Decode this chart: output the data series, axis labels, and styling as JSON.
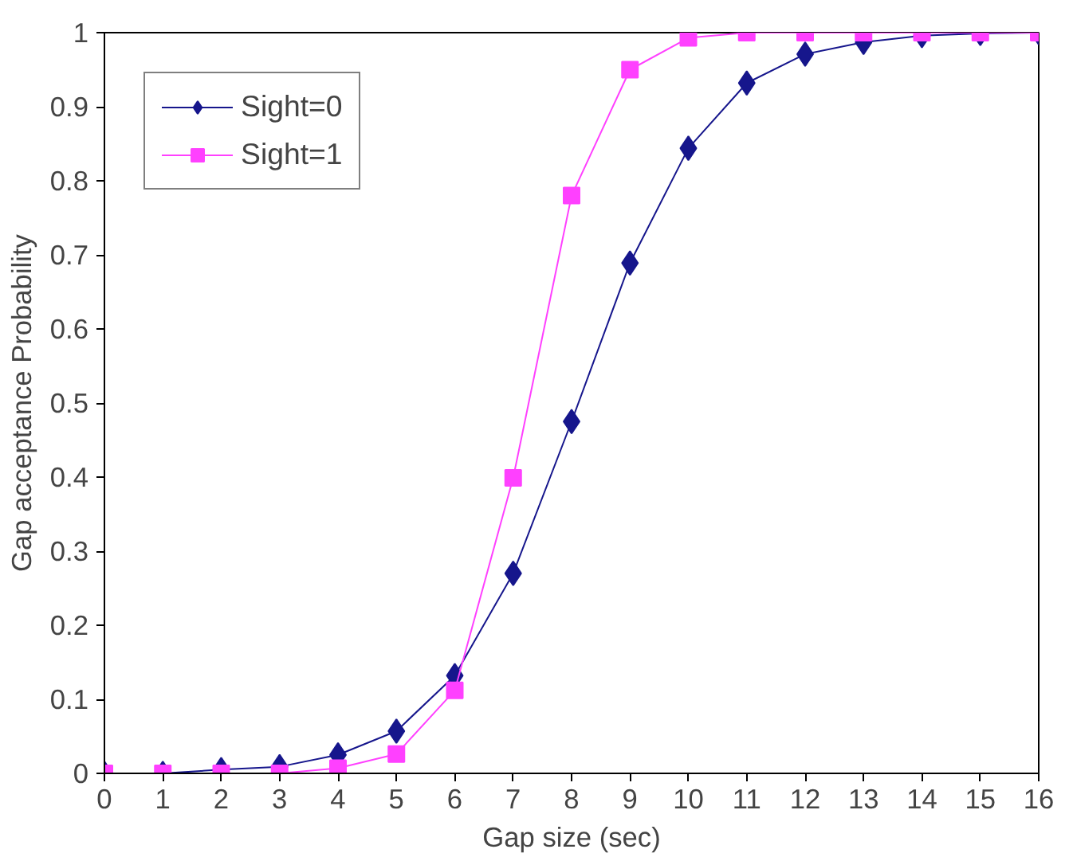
{
  "chart_data": {
    "type": "line",
    "xlabel": "Gap size (sec)",
    "ylabel": "Gap acceptance Probability",
    "x": [
      0,
      1,
      2,
      3,
      4,
      5,
      6,
      7,
      8,
      9,
      10,
      11,
      12,
      13,
      14,
      15,
      16
    ],
    "series": [
      {
        "name": "Sight=0",
        "color": "#16168c",
        "marker": "diamond",
        "values": [
          0,
          0,
          0.005,
          0.009,
          0.025,
          0.057,
          0.132,
          0.27,
          0.475,
          0.689,
          0.844,
          0.932,
          0.971,
          0.987,
          0.996,
          0.999,
          1.0
        ]
      },
      {
        "name": "Sight=1",
        "color": "#ff40ff",
        "marker": "square",
        "values": [
          0,
          0,
          0,
          0,
          0.007,
          0.026,
          0.112,
          0.399,
          0.78,
          0.95,
          0.993,
          1,
          1,
          1,
          1,
          1,
          1
        ]
      }
    ],
    "xlim": [
      0,
      16
    ],
    "ylim": [
      0,
      1
    ],
    "xticks": [
      0,
      1,
      2,
      3,
      4,
      5,
      6,
      7,
      8,
      9,
      10,
      11,
      12,
      13,
      14,
      15,
      16
    ],
    "yticks": [
      0,
      0.1,
      0.2,
      0.3,
      0.4,
      0.5,
      0.6,
      0.7,
      0.8,
      0.9,
      1
    ],
    "grid": false,
    "legend": "top left",
    "line_style": "solid"
  }
}
